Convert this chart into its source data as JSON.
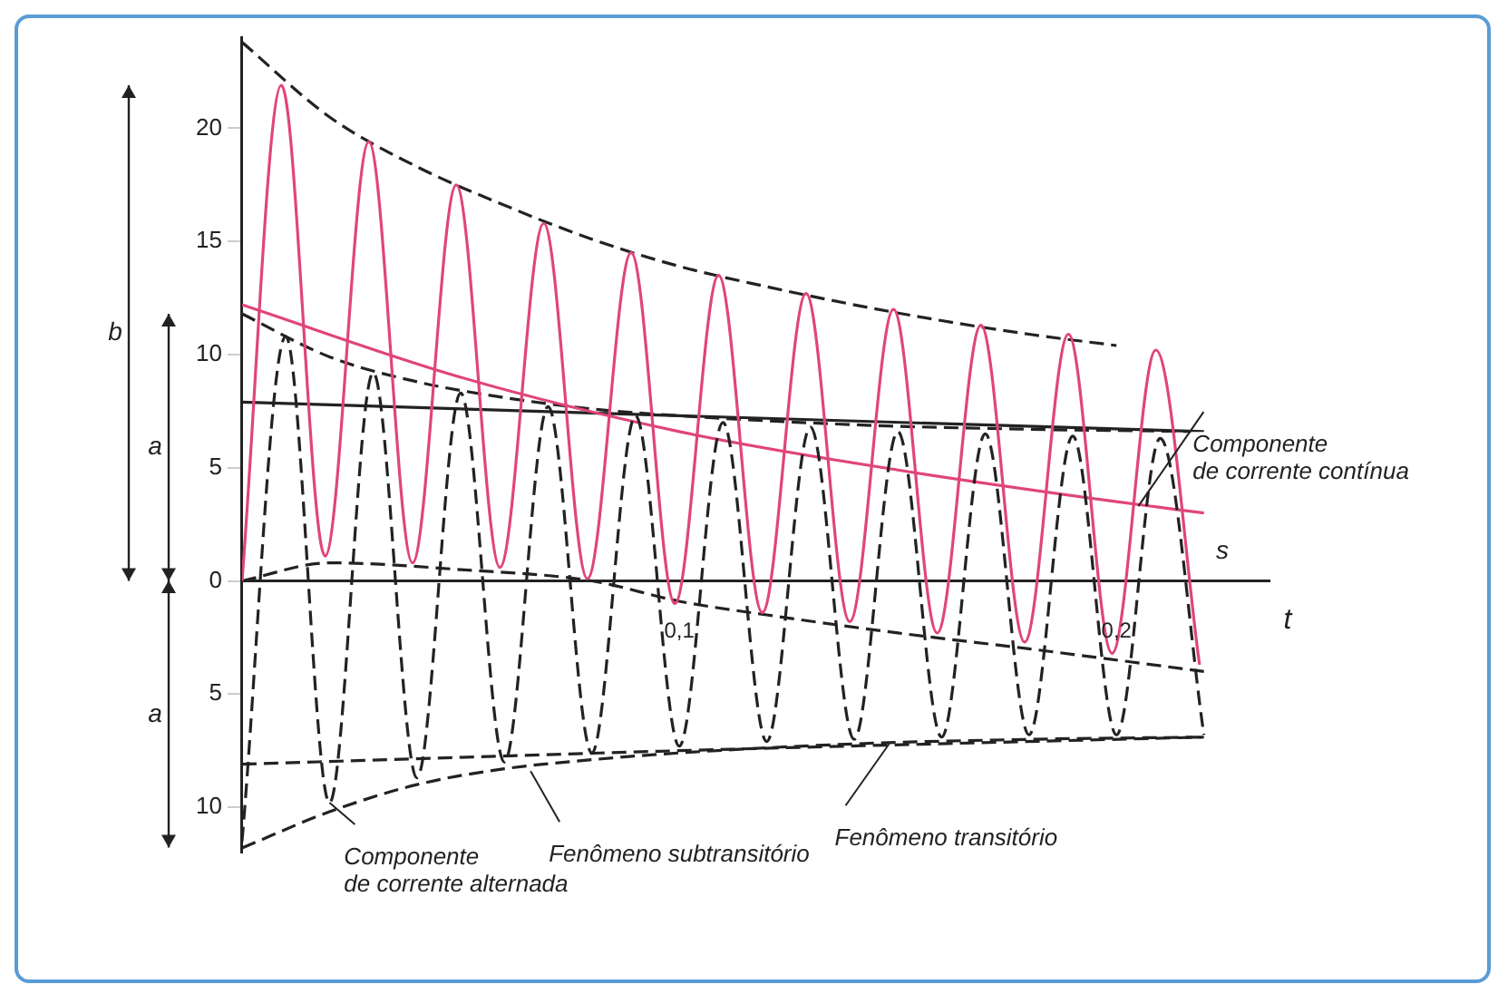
{
  "chart_data": {
    "type": "line",
    "xlabel": "t",
    "xlim": [
      0,
      0.235
    ],
    "xticks": [
      {
        "value": 0.1,
        "label": "0,1"
      },
      {
        "value": 0.2,
        "label": "0,2"
      }
    ],
    "ylim": [
      -12,
      24
    ],
    "yticks": [
      {
        "value": -10,
        "label": "10"
      },
      {
        "value": -5,
        "label": "5"
      },
      0,
      5,
      10,
      15,
      20
    ],
    "grid": false,
    "legend": false,
    "marker": "none",
    "series": [
      {
        "color": "#e0457a",
        "line_style": "solid",
        "x": [
          0,
          0.009,
          0.019,
          0.029,
          0.039,
          0.049,
          0.059,
          0.069,
          0.079,
          0.089,
          0.099,
          0.109,
          0.119,
          0.129,
          0.139,
          0.149,
          0.159,
          0.169,
          0.179,
          0.189,
          0.199,
          0.209,
          0.219
        ],
        "values": [
          0,
          21.9,
          1.1,
          19.4,
          0.8,
          17.5,
          0.6,
          15.8,
          0.1,
          14.5,
          -1.0,
          13.5,
          -1.4,
          12.7,
          -1.8,
          12.0,
          -2.3,
          11.3,
          -2.7,
          10.9,
          -3.2,
          10.2,
          -3.7
        ]
      },
      {
        "color": "#222222",
        "line_style": "dashed",
        "x": [
          0,
          0.01,
          0.02,
          0.03,
          0.04,
          0.05,
          0.06,
          0.07,
          0.08,
          0.09,
          0.1,
          0.11,
          0.12,
          0.13,
          0.14,
          0.15,
          0.16,
          0.17,
          0.18,
          0.19,
          0.2,
          0.21,
          0.22
        ],
        "values": [
          -11.5,
          10.8,
          -9.8,
          9.2,
          -8.7,
          8.3,
          -8.0,
          7.7,
          -7.6,
          7.3,
          -7.3,
          7.0,
          -7.1,
          6.8,
          -7.0,
          6.6,
          -6.9,
          6.5,
          -6.8,
          6.4,
          -6.8,
          6.3,
          -6.8
        ]
      },
      {
        "type": "line",
        "color": "#e0457a",
        "line_style": "solid",
        "x": [
          0,
          0.05,
          0.1,
          0.15,
          0.2,
          0.22
        ],
        "values": [
          12.2,
          9.0,
          6.6,
          4.9,
          3.5,
          3.0
        ]
      },
      {
        "color": "#222222",
        "line_style": "dashed",
        "x": [
          0,
          0.02,
          0.04,
          0.06,
          0.08,
          0.1,
          0.12,
          0.14,
          0.16,
          0.18,
          0.2
        ],
        "values": [
          23.8,
          20.5,
          18.3,
          16.6,
          15.1,
          13.9,
          13.0,
          12.2,
          11.5,
          10.9,
          10.4
        ]
      },
      {
        "color": "#222222",
        "line_style": "dashed",
        "x": [
          0,
          0.02,
          0.05,
          0.08,
          0.1,
          0.12,
          0.15,
          0.18,
          0.22
        ],
        "values": [
          0,
          0.8,
          0.5,
          0,
          -0.9,
          -1.5,
          -2.3,
          -3.0,
          -4.0
        ]
      },
      {
        "color": "#222222",
        "line_style": "dashed",
        "x": [
          0,
          0.02,
          0.04,
          0.06,
          0.08,
          0.1,
          0.14,
          0.18,
          0.22
        ],
        "values": [
          11.8,
          9.9,
          8.8,
          8.1,
          7.6,
          7.3,
          6.9,
          6.7,
          6.6
        ]
      },
      {
        "color": "#222222",
        "line_style": "dashed",
        "x": [
          0,
          0.02,
          0.04,
          0.06,
          0.08,
          0.1,
          0.14,
          0.18,
          0.22
        ],
        "values": [
          -11.8,
          -10.2,
          -9.0,
          -8.3,
          -7.9,
          -7.6,
          -7.2,
          -7.0,
          -6.9
        ]
      },
      {
        "color": "#222222",
        "line_style": "solid",
        "x": [
          0,
          0.1,
          0.22
        ],
        "values": [
          7.9,
          7.3,
          6.6
        ]
      },
      {
        "color": "#222222",
        "line_style": "dashed",
        "x": [
          0,
          0.1,
          0.22
        ],
        "values": [
          -8.1,
          -7.5,
          -6.9
        ]
      }
    ],
    "annotations": [
      {
        "text": "Componente de corrente contínua",
        "x": 0.205,
        "y": 3.3
      },
      {
        "text": "Componente de corrente alternada",
        "x": 0.02,
        "y": -9.8
      },
      {
        "text": "Fenômeno subtransitório",
        "x": 0.066,
        "y": -8.4
      },
      {
        "text": "Fenômeno transitório",
        "x": 0.148,
        "y": -7.2
      },
      "b",
      "a",
      "a",
      "s"
    ]
  }
}
